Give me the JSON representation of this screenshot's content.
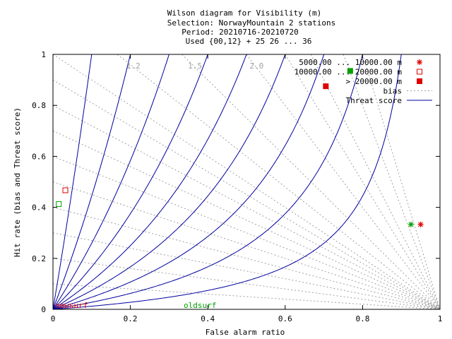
{
  "title": {
    "line1": "Wilson diagram  for Visibility (m)",
    "line2": "Selection: NorwayMountain      2 stations",
    "line3": "Period: 20210716-20210720",
    "line4": "Used {00,12} + 25 26 ... 36"
  },
  "chart_data": {
    "type": "scatter",
    "xlabel": "False alarm ratio",
    "ylabel": "Hit rate (bias and Threat score)",
    "xlim": [
      0,
      1
    ],
    "ylim": [
      0,
      1
    ],
    "x_ticks": [
      "0",
      "0.2",
      "0.4",
      "0.6",
      "0.8",
      "1"
    ],
    "y_ticks": [
      "0",
      "0.2",
      "0.4",
      "0.6",
      "0.8",
      "1"
    ],
    "bias_labels": [
      "1.2",
      "1.5",
      "2.0"
    ],
    "bias_values": [
      0.1,
      0.2,
      0.3,
      0.4,
      0.5,
      0.6,
      0.7,
      0.8,
      0.9,
      1.0,
      1.2,
      1.5,
      2.0,
      2.5,
      3.0,
      4.0,
      5.0
    ],
    "threat_score_values": [
      0.1,
      0.2,
      0.3,
      0.4,
      0.5,
      0.6,
      0.7,
      0.8,
      0.9
    ],
    "legend": {
      "position": "top-right",
      "entries": [
        {
          "label": "5000.00 ... 10000.00 m",
          "marker": "star"
        },
        {
          "label": "10000.00 ... 20000.00 m",
          "marker": "open-square"
        },
        {
          "label": "> 20000.00 m",
          "marker": "filled-square"
        },
        {
          "label": "bias",
          "marker": "dotted-line"
        },
        {
          "label": "Threat score",
          "marker": "solid-line"
        }
      ]
    },
    "series": [
      {
        "name": "newsurf",
        "color": "#dd0000",
        "points": [
          {
            "x": 0.95,
            "y": 0.333,
            "marker": "star"
          },
          {
            "x": 0.032,
            "y": 0.467,
            "marker": "open-square"
          },
          {
            "x": 0.705,
            "y": 0.875,
            "marker": "filled-square"
          }
        ]
      },
      {
        "name": "oldsurf",
        "color": "#00a000",
        "points": [
          {
            "x": 0.925,
            "y": 0.333,
            "marker": "star"
          },
          {
            "x": 0.015,
            "y": 0.413,
            "marker": "open-square"
          },
          {
            "x": 0.768,
            "y": 0.935,
            "marker": "filled-square"
          }
        ]
      }
    ],
    "colors": {
      "threat_line": "#0000a0",
      "bias_line": "#a0a0a0",
      "bias_label": "#a0a0a0"
    }
  }
}
